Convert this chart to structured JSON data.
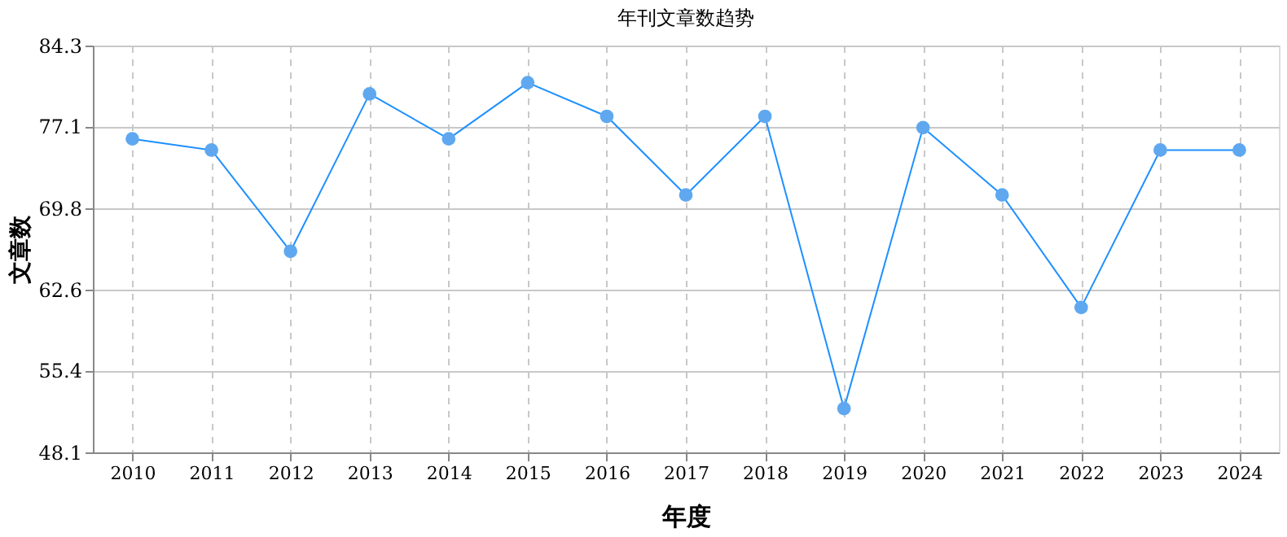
{
  "chart_data": {
    "type": "line",
    "title": "年刊文章数趋势",
    "xlabel": "年度",
    "ylabel": "文章数",
    "categories": [
      "2010",
      "2011",
      "2012",
      "2013",
      "2014",
      "2015",
      "2016",
      "2017",
      "2018",
      "2019",
      "2020",
      "2021",
      "2022",
      "2023",
      "2024"
    ],
    "series": [
      {
        "color": "#1e90ff",
        "values": [
          76,
          75,
          66,
          80,
          76,
          81,
          78,
          71,
          78,
          52,
          77,
          71,
          61,
          75,
          75
        ]
      }
    ],
    "ylim": [
      48.1,
      84.3
    ],
    "yticks": [
      48.1,
      55.4,
      62.6,
      69.8,
      77.1,
      84.3
    ],
    "grid": true,
    "marker": "circle",
    "line_style": "solid",
    "legend": false
  }
}
